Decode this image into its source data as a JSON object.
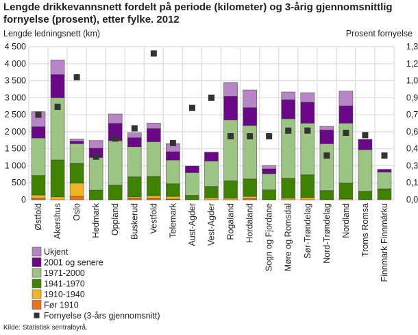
{
  "chart_data": {
    "type": "bar",
    "stacked": true,
    "title": "Lengde drikkevannsnett fordelt på periode (kilometer) og 3-årig gjennomsnittlig fornyelse (prosent), etter fylke. 2012",
    "ylabel": "Lengde ledningsnett (km)",
    "y2label": "Prosent fornyelse",
    "ylim": [
      0,
      4500
    ],
    "y2lim": [
      0,
      1.35
    ],
    "yticks": [
      "0",
      "500",
      "1 000",
      "1 500",
      "2 000",
      "2 500",
      "3 000",
      "3 500",
      "4 000",
      "4 500"
    ],
    "y2ticks": [
      "0,00",
      "0,15",
      "0,30",
      "0,45",
      "0,60",
      "0,75",
      "0,90",
      "1,05",
      "1,20",
      "1,35"
    ],
    "grid": true,
    "legend_position": "bottom-left",
    "categories": [
      "Østfold",
      "Akershus",
      "Oslo",
      "Hedmark",
      "Oppland",
      "Buskerud",
      "Vestfold",
      "Telemark",
      "Aust-Agder",
      "Vest-Agder",
      "Rogaland",
      "Hordaland",
      "Sogn og Fjordane",
      "Møre og Romsdal",
      "Sør-Trøndelag",
      "Nord-Trøndelag",
      "Nordland",
      "Troms Romsa",
      "Finnmark Finnmárku"
    ],
    "series": [
      {
        "name": "Før 1910",
        "color": "#e8731a",
        "values": [
          40,
          0,
          100,
          0,
          0,
          40,
          40,
          20,
          0,
          0,
          0,
          30,
          0,
          0,
          0,
          0,
          0,
          0,
          0
        ]
      },
      {
        "name": "1910-1940",
        "color": "#f0b323",
        "values": [
          100,
          87,
          390,
          0,
          0,
          47,
          80,
          80,
          0,
          60,
          47,
          70,
          0,
          47,
          67,
          0,
          27,
          0,
          20
        ]
      },
      {
        "name": "1941-1970",
        "color": "#3e8200",
        "values": [
          573,
          1083,
          580,
          282,
          430,
          586,
          565,
          370,
          128,
          330,
          511,
          511,
          289,
          585,
          666,
          269,
          464,
          249,
          303
        ]
      },
      {
        "name": "1971-2000",
        "color": "#9cc483",
        "values": [
          1103,
          1830,
          580,
          962,
          1305,
          887,
          1022,
          699,
          672,
          747,
          1789,
          1574,
          478,
          1749,
          1520,
          1379,
          1762,
          1224,
          491
        ]
      },
      {
        "name": "2001 og senere",
        "color": "#6a0787",
        "values": [
          330,
          680,
          70,
          269,
          511,
          263,
          384,
          242,
          189,
          262,
          693,
          524,
          141,
          558,
          612,
          403,
          505,
          303,
          81
        ]
      },
      {
        "name": "Ukjent",
        "color": "#b784c5",
        "values": [
          444,
          430,
          67,
          229,
          276,
          147,
          161,
          242,
          0,
          0,
          404,
          518,
          101,
          229,
          283,
          108,
          437,
          0,
          0
        ]
      }
    ],
    "line_series": {
      "name": "Fornyelse  (3-års gjennomsnitt)",
      "color": "#333333",
      "marker": "square",
      "axis": "right",
      "values": [
        0.75,
        0.82,
        1.08,
        0.38,
        0.54,
        0.63,
        1.29,
        0.5,
        0.81,
        0.9,
        0.56,
        0.56,
        0.56,
        0.61,
        0.61,
        0.39,
        0.59,
        0.57,
        0.39
      ]
    }
  },
  "source": "Kilde: Statistisk sentralbyrå."
}
